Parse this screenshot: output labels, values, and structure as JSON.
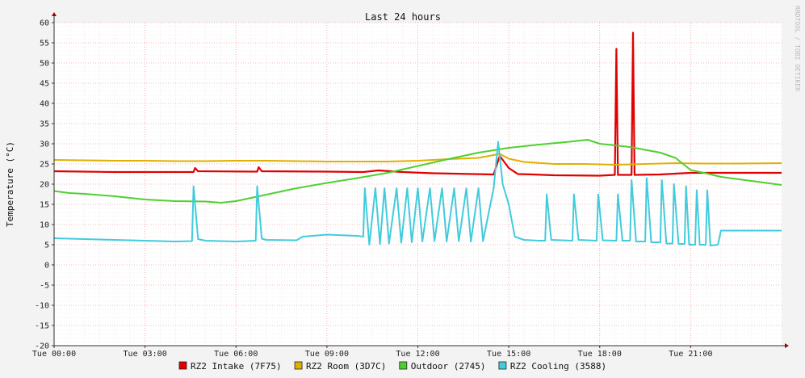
{
  "chart_data": {
    "type": "line",
    "title": "Last 24 hours",
    "ylabel": "Temperature (°C)",
    "xlabel": "",
    "watermark": "RRDTOOL / TOBI OETIKER",
    "xlim": [
      0,
      24
    ],
    "ylim": [
      -20,
      60
    ],
    "yticks": [
      60,
      55,
      50,
      45,
      40,
      35,
      30,
      25,
      20,
      15,
      10,
      5,
      0,
      -5,
      -10,
      -15,
      -20
    ],
    "xticks": [
      {
        "x": 0,
        "label": "Tue 00:00"
      },
      {
        "x": 3,
        "label": "Tue 03:00"
      },
      {
        "x": 6,
        "label": "Tue 06:00"
      },
      {
        "x": 9,
        "label": "Tue 09:00"
      },
      {
        "x": 12,
        "label": "Tue 12:00"
      },
      {
        "x": 15,
        "label": "Tue 15:00"
      },
      {
        "x": 18,
        "label": "Tue 18:00"
      },
      {
        "x": 21,
        "label": "Tue 21:00"
      }
    ],
    "grid": true,
    "legend_position": "bottom",
    "series": [
      {
        "name": "RZ2 Intake (7F75)",
        "color": "#e00000",
        "points": [
          [
            0,
            23.2
          ],
          [
            1,
            23.1
          ],
          [
            2,
            23.0
          ],
          [
            4.6,
            23.0
          ],
          [
            4.65,
            24.0
          ],
          [
            4.75,
            23.2
          ],
          [
            6.7,
            23.1
          ],
          [
            6.75,
            24.2
          ],
          [
            6.85,
            23.2
          ],
          [
            9,
            23.1
          ],
          [
            10.2,
            23.0
          ],
          [
            10.7,
            23.4
          ],
          [
            11.5,
            23.0
          ],
          [
            12.5,
            22.7
          ],
          [
            14.5,
            22.4
          ],
          [
            14.7,
            27.0
          ],
          [
            15.0,
            24.0
          ],
          [
            15.3,
            22.5
          ],
          [
            15.8,
            22.4
          ],
          [
            16.5,
            22.2
          ],
          [
            18.0,
            22.1
          ],
          [
            18.5,
            22.3
          ],
          [
            18.55,
            53.5
          ],
          [
            18.6,
            22.3
          ],
          [
            19.05,
            22.3
          ],
          [
            19.1,
            57.5
          ],
          [
            19.15,
            22.3
          ],
          [
            20,
            22.4
          ],
          [
            21,
            22.8
          ],
          [
            22,
            22.8
          ],
          [
            24,
            22.8
          ]
        ]
      },
      {
        "name": "RZ2 Room (3D7C)",
        "color": "#e0b000",
        "points": [
          [
            0,
            26.0
          ],
          [
            1,
            25.9
          ],
          [
            2,
            25.8
          ],
          [
            3,
            25.8
          ],
          [
            4,
            25.7
          ],
          [
            5,
            25.7
          ],
          [
            6,
            25.8
          ],
          [
            7,
            25.8
          ],
          [
            8,
            25.7
          ],
          [
            9,
            25.6
          ],
          [
            10,
            25.6
          ],
          [
            11,
            25.6
          ],
          [
            12,
            25.8
          ],
          [
            13,
            26.2
          ],
          [
            14,
            26.5
          ],
          [
            14.7,
            27.5
          ],
          [
            15,
            26.3
          ],
          [
            15.5,
            25.5
          ],
          [
            16.5,
            25.0
          ],
          [
            17.5,
            25.0
          ],
          [
            18.5,
            24.8
          ],
          [
            19.5,
            25.0
          ],
          [
            20.5,
            25.2
          ],
          [
            21.5,
            25.1
          ],
          [
            22.5,
            25.1
          ],
          [
            24,
            25.2
          ]
        ]
      },
      {
        "name": "Outdoor (2745)",
        "color": "#4fd030",
        "points": [
          [
            0,
            18.3
          ],
          [
            0.5,
            17.8
          ],
          [
            1,
            17.6
          ],
          [
            2,
            17.0
          ],
          [
            3,
            16.2
          ],
          [
            4,
            15.8
          ],
          [
            5,
            15.7
          ],
          [
            5.5,
            15.4
          ],
          [
            6,
            15.8
          ],
          [
            7,
            17.4
          ],
          [
            8,
            19.0
          ],
          [
            9,
            20.3
          ],
          [
            10,
            21.5
          ],
          [
            11,
            22.8
          ],
          [
            12,
            24.5
          ],
          [
            13,
            26.2
          ],
          [
            14,
            27.8
          ],
          [
            15,
            29.0
          ],
          [
            16,
            29.8
          ],
          [
            17,
            30.5
          ],
          [
            17.6,
            31.0
          ],
          [
            18,
            30.0
          ],
          [
            19,
            29.2
          ],
          [
            20,
            27.8
          ],
          [
            20.5,
            26.5
          ],
          [
            21,
            23.5
          ],
          [
            21.5,
            22.7
          ],
          [
            22,
            21.8
          ],
          [
            23,
            20.8
          ],
          [
            24,
            19.8
          ]
        ]
      },
      {
        "name": "RZ2 Cooling (3588)",
        "color": "#40ccdd",
        "points": [
          [
            0,
            6.6
          ],
          [
            0.5,
            6.5
          ],
          [
            1,
            6.4
          ],
          [
            2,
            6.2
          ],
          [
            3,
            6.0
          ],
          [
            4,
            5.8
          ],
          [
            4.55,
            5.9
          ],
          [
            4.6,
            19.5
          ],
          [
            4.75,
            6.4
          ],
          [
            5,
            6.0
          ],
          [
            6,
            5.8
          ],
          [
            6.65,
            6.0
          ],
          [
            6.7,
            19.5
          ],
          [
            6.85,
            6.5
          ],
          [
            7,
            6.2
          ],
          [
            8,
            6.1
          ],
          [
            8.2,
            7.0
          ],
          [
            9,
            7.5
          ],
          [
            10,
            7.2
          ],
          [
            10.2,
            7.0
          ],
          [
            10.25,
            19.0
          ],
          [
            10.4,
            5.0
          ],
          [
            10.6,
            19.0
          ],
          [
            10.75,
            5.2
          ],
          [
            10.9,
            19.0
          ],
          [
            11.05,
            5.3
          ],
          [
            11.3,
            19.0
          ],
          [
            11.45,
            5.5
          ],
          [
            11.65,
            19.0
          ],
          [
            11.8,
            5.6
          ],
          [
            12.0,
            19.0
          ],
          [
            12.15,
            5.8
          ],
          [
            12.4,
            19.0
          ],
          [
            12.55,
            5.9
          ],
          [
            12.8,
            19.0
          ],
          [
            12.95,
            5.8
          ],
          [
            13.2,
            19.0
          ],
          [
            13.35,
            5.9
          ],
          [
            13.6,
            19.0
          ],
          [
            13.75,
            5.8
          ],
          [
            14.0,
            19.0
          ],
          [
            14.15,
            5.9
          ],
          [
            14.5,
            19.0
          ],
          [
            14.65,
            30.5
          ],
          [
            14.8,
            20.0
          ],
          [
            15.0,
            15.0
          ],
          [
            15.2,
            7.0
          ],
          [
            15.5,
            6.2
          ],
          [
            16.0,
            6.0
          ],
          [
            16.2,
            6.0
          ],
          [
            16.25,
            17.5
          ],
          [
            16.4,
            6.2
          ],
          [
            17.1,
            6.0
          ],
          [
            17.15,
            17.5
          ],
          [
            17.3,
            6.2
          ],
          [
            17.9,
            6.0
          ],
          [
            17.95,
            17.5
          ],
          [
            18.1,
            6.1
          ],
          [
            18.55,
            6.0
          ],
          [
            18.6,
            17.5
          ],
          [
            18.75,
            6.0
          ],
          [
            19.0,
            6.0
          ],
          [
            19.05,
            21.0
          ],
          [
            19.2,
            5.8
          ],
          [
            19.5,
            5.8
          ],
          [
            19.55,
            21.5
          ],
          [
            19.7,
            5.6
          ],
          [
            20.0,
            5.6
          ],
          [
            20.05,
            21.0
          ],
          [
            20.2,
            5.3
          ],
          [
            20.4,
            5.3
          ],
          [
            20.45,
            20.0
          ],
          [
            20.6,
            5.2
          ],
          [
            20.8,
            5.2
          ],
          [
            20.85,
            19.5
          ],
          [
            20.95,
            5.0
          ],
          [
            21.15,
            5.0
          ],
          [
            21.2,
            18.5
          ],
          [
            21.3,
            5.0
          ],
          [
            21.5,
            5.0
          ],
          [
            21.55,
            18.5
          ],
          [
            21.65,
            4.8
          ],
          [
            21.9,
            5.0
          ],
          [
            22,
            8.5
          ],
          [
            23,
            8.5
          ],
          [
            24,
            8.5
          ]
        ]
      }
    ]
  }
}
